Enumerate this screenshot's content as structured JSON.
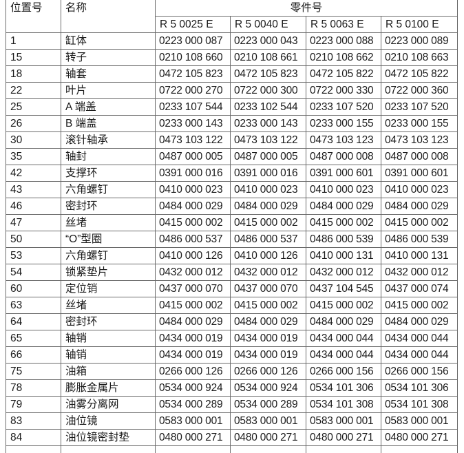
{
  "headers": {
    "position": "位置号",
    "name": "名称",
    "part_number": "零件号",
    "models": [
      "R 5 0025 E",
      "R 5 0040 E",
      "R 5 0063 E",
      "R 5 0100 E"
    ]
  },
  "rows": [
    {
      "pos": "1",
      "name": "缸体",
      "parts": [
        "0223 000 087",
        "0223 000 043",
        "0223 000 088",
        "0223 000 089"
      ]
    },
    {
      "pos": "15",
      "name": "转子",
      "parts": [
        "0210 108 660",
        "0210 108 661",
        "0210 108 662",
        "0210 108 663"
      ]
    },
    {
      "pos": "18",
      "name": "轴套",
      "parts": [
        "0472 105 823",
        "0472 105 823",
        "0472 105 822",
        "0472 105 822"
      ]
    },
    {
      "pos": "22",
      "name": "叶片",
      "parts": [
        "0722 000 270",
        "0722 000 300",
        "0722 000 330",
        "0722 000 360"
      ]
    },
    {
      "pos": "25",
      "name": "A 端盖",
      "parts": [
        "0233 107 544",
        "0233 102 544",
        "0233 107 520",
        "0233 107 520"
      ]
    },
    {
      "pos": "26",
      "name": "B 端盖",
      "parts": [
        "0233 000 143",
        "0233 000 143",
        "0233 000 155",
        "0233 000 155"
      ]
    },
    {
      "pos": "30",
      "name": "滚针轴承",
      "parts": [
        "0473 103 122",
        "0473 103 122",
        "0473 103 123",
        "0473 103 123"
      ]
    },
    {
      "pos": "35",
      "name": "轴封",
      "parts": [
        "0487 000 005",
        "0487 000 005",
        "0487 000 008",
        "0487 000 008"
      ]
    },
    {
      "pos": "42",
      "name": "支撑环",
      "parts": [
        "0391 000 016",
        "0391 000 016",
        "0391 000 601",
        "0391 000 601"
      ]
    },
    {
      "pos": "43",
      "name": "六角螺钉",
      "parts": [
        "0410 000 023",
        "0410 000 023",
        "0410 000 023",
        "0410 000 023"
      ]
    },
    {
      "pos": "46",
      "name": "密封环",
      "parts": [
        "0484 000 029",
        "0484 000 029",
        "0484 000 029",
        "0484 000 029"
      ]
    },
    {
      "pos": "47",
      "name": "丝堵",
      "parts": [
        "0415 000 002",
        "0415 000 002",
        "0415 000 002",
        "0415 000 002"
      ]
    },
    {
      "pos": "50",
      "name": "“O”型圈",
      "parts": [
        "0486 000 537",
        "0486 000 537",
        "0486 000 539",
        "0486 000 539"
      ]
    },
    {
      "pos": "53",
      "name": "六角螺钉",
      "parts": [
        "0410 000 126",
        "0410 000 126",
        "0410 000 131",
        "0410 000 131"
      ]
    },
    {
      "pos": "54",
      "name": "锁紧垫片",
      "parts": [
        "0432 000 012",
        "0432 000 012",
        "0432 000 012",
        "0432 000 012"
      ]
    },
    {
      "pos": "60",
      "name": "定位销",
      "parts": [
        "0437 000 070",
        "0437 000 070",
        "0437 104 545",
        "0437 000 074"
      ]
    },
    {
      "pos": "63",
      "name": "丝堵",
      "parts": [
        "0415 000 002",
        "0415 000 002",
        "0415 000 002",
        "0415 000 002"
      ]
    },
    {
      "pos": "64",
      "name": "密封环",
      "parts": [
        "0484 000 029",
        "0484 000 029",
        "0484 000 029",
        "0484 000 029"
      ]
    },
    {
      "pos": "65",
      "name": "轴销",
      "parts": [
        "0434 000 019",
        "0434 000 019",
        "0434 000 044",
        "0434 000 044"
      ]
    },
    {
      "pos": "66",
      "name": "轴销",
      "parts": [
        "0434 000 019",
        "0434 000 019",
        "0434 000 044",
        "0434 000 044"
      ]
    },
    {
      "pos": "75",
      "name": "油箱",
      "parts": [
        "0266 000 126",
        "0266 000 126",
        "0266 000 156",
        "0266 000 156"
      ]
    },
    {
      "pos": "78",
      "name": "膨胀金属片",
      "parts": [
        "0534 000 924",
        "0534 000 924",
        "0534 101 306",
        "0534 101 306"
      ]
    },
    {
      "pos": "79",
      "name": "油雾分离网",
      "parts": [
        "0534 000 289",
        "0534 000 289",
        "0534 101 308",
        "0534 101 308"
      ]
    },
    {
      "pos": "83",
      "name": "油位镜",
      "parts": [
        "0583 000 001",
        "0583 000 001",
        "0583 000 001",
        "0583 000 001"
      ]
    },
    {
      "pos": "84",
      "name": "油位镜密封垫",
      "parts": [
        "0480 000 271",
        "0480 000 271",
        "0480 000 271",
        "0480 000 271"
      ]
    }
  ]
}
